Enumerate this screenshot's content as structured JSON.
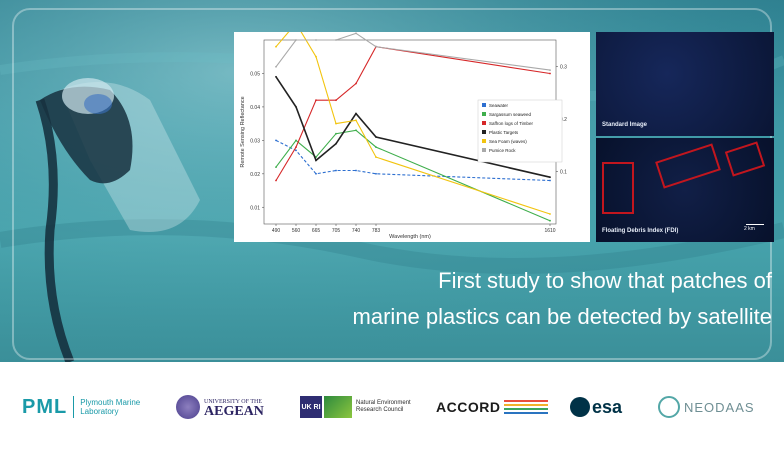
{
  "chart_data": {
    "type": "line",
    "x": [
      490,
      560,
      665,
      705,
      740,
      783,
      1610
    ],
    "xticks": [
      "490",
      "560",
      "665",
      "705",
      "740",
      "783",
      "1610"
    ],
    "xlabel": "Wavelength (nm)",
    "ylabel": "Remote Sensing Reflectance",
    "yticks_left": [
      "0.01",
      "0.02",
      "0.03",
      "0.04",
      "0.05"
    ],
    "yticks_right": [
      "0.3",
      "0.2",
      "0.1"
    ],
    "ylim_left": [
      0.005,
      0.06
    ],
    "ylim_right": [
      0.0,
      0.35
    ],
    "legend_position": "right",
    "series": [
      {
        "name": "Seawater",
        "color": "#2d6fd0",
        "values": [
          0.03,
          0.027,
          0.02,
          0.021,
          0.021,
          0.02,
          0.018
        ]
      },
      {
        "name": "Sargassum seaweed",
        "color": "#3fae4c",
        "values": [
          0.022,
          0.03,
          0.025,
          0.032,
          0.033,
          0.028,
          0.006
        ]
      },
      {
        "name": "Saffron logs of Timber",
        "color": "#d62728",
        "values": [
          0.018,
          0.028,
          0.042,
          0.042,
          0.047,
          0.058,
          0.05
        ]
      },
      {
        "name": "Plastic Targets",
        "color": "#222222",
        "values": [
          0.049,
          0.04,
          0.024,
          0.029,
          0.038,
          0.031,
          0.019
        ]
      },
      {
        "name": "Sea Foam (waves)",
        "color": "#f2c40f",
        "values": [
          0.058,
          0.065,
          0.055,
          0.035,
          0.036,
          0.025,
          0.008
        ]
      },
      {
        "name": "Pumice Rock",
        "color": "#a9a9a9",
        "values": [
          0.052,
          0.06,
          0.06,
          0.06,
          0.062,
          0.058,
          0.051
        ]
      }
    ]
  },
  "satellite": {
    "standard_label": "Standard Image",
    "fdi_label": "Floating Debris Index (FDI)",
    "scale_label": "2 km"
  },
  "headline": {
    "line1": "First study to show that patches of",
    "line2": "marine plastics can be detected by satellite"
  },
  "logos": {
    "pml_mark": "PML",
    "pml_name": "Plymouth Marine Laboratory",
    "aegean_small": "UNIVERSITY OF THE",
    "aegean_big": "AEGEAN",
    "ukri": "UK RI",
    "nerc": "Natural Environment Research Council",
    "accord": "ACCORD",
    "esa": "esa",
    "neodaas": "NEODAAS"
  },
  "colors": {
    "banner": "#3d98a5",
    "pml_teal": "#1a9aa8",
    "debris_box": "#c2161e"
  }
}
